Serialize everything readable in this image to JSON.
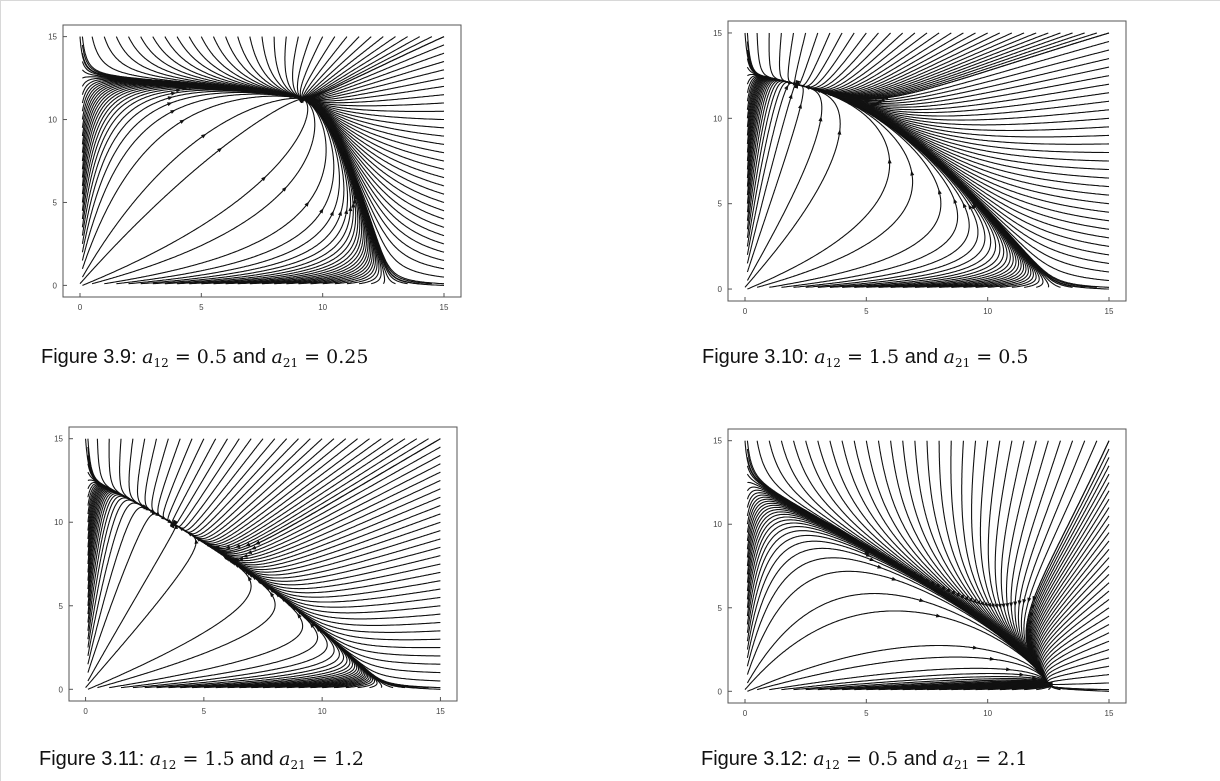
{
  "chart_data": [
    {
      "type": "vector_field_streamplot",
      "figure_label": "Figure 3.9:",
      "a12": "0.5",
      "a21": "0.25",
      "xlim": [
        0,
        15
      ],
      "ylim": [
        0,
        15
      ],
      "x_ticks": [
        "0",
        "5",
        "10",
        "15"
      ],
      "y_ticks": [
        "0",
        "5",
        "10",
        "15"
      ],
      "grid": false
    },
    {
      "type": "vector_field_streamplot",
      "figure_label": "Figure 3.10:",
      "a12": "1.5",
      "a21": "0.5",
      "xlim": [
        0,
        15
      ],
      "ylim": [
        0,
        15
      ],
      "x_ticks": [
        "0",
        "5",
        "10",
        "15"
      ],
      "y_ticks": [
        "0",
        "5",
        "10",
        "15"
      ],
      "grid": false
    },
    {
      "type": "vector_field_streamplot",
      "figure_label": "Figure 3.11:",
      "a12": "1.5",
      "a21": "1.2",
      "xlim": [
        0,
        15
      ],
      "ylim": [
        0,
        15
      ],
      "x_ticks": [
        "0",
        "5",
        "10",
        "15"
      ],
      "y_ticks": [
        "0",
        "5",
        "10",
        "15"
      ],
      "grid": false
    },
    {
      "type": "vector_field_streamplot",
      "figure_label": "Figure 3.12:",
      "a12": "0.5",
      "a21": "2.1",
      "xlim": [
        0,
        15
      ],
      "ylim": [
        0,
        15
      ],
      "x_ticks": [
        "0",
        "5",
        "10",
        "15"
      ],
      "y_ticks": [
        "0",
        "5",
        "10",
        "15"
      ],
      "grid": false
    }
  ],
  "caption_text": {
    "and": "and",
    "a": "a",
    "sub12": "12",
    "sub21": "21",
    "equals": "="
  },
  "colors": {
    "ink": "#111111",
    "frame": "#555555"
  }
}
